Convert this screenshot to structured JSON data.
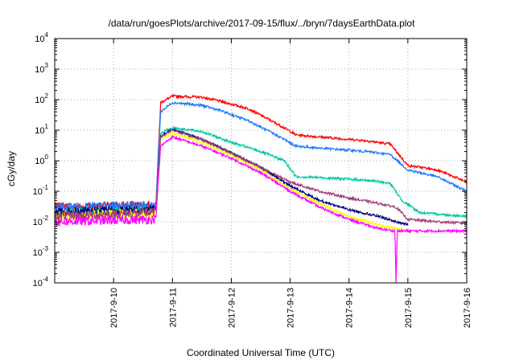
{
  "chart_data": {
    "type": "line",
    "title": "/data/run/goesPlots/archive/2017-09-15/flux/../bryn/7daysEarthData.plot",
    "xlabel": "Coordinated Universal Time (UTC)",
    "ylabel": "cGy/day",
    "x_range": [
      "2017-09-09 00:00",
      "2017-09-16 00:00"
    ],
    "y_scale": "log",
    "ylim": [
      0.0001,
      10000
    ],
    "y_ticks": [
      {
        "mant": "10",
        "exp": "-4"
      },
      {
        "mant": "10",
        "exp": "-3"
      },
      {
        "mant": "10",
        "exp": "-2"
      },
      {
        "mant": "10",
        "exp": "-1"
      },
      {
        "mant": "10",
        "exp": "0"
      },
      {
        "mant": "10",
        "exp": "1"
      },
      {
        "mant": "10",
        "exp": "2"
      },
      {
        "mant": "10",
        "exp": "3"
      },
      {
        "mant": "10",
        "exp": "4"
      }
    ],
    "x_ticks": [
      "2017-9-10",
      "2017-9-11",
      "2017-9-12",
      "2017-9-13",
      "2017-9-14",
      "2017-9-15",
      "2017-9-16"
    ],
    "grid": true,
    "series": [
      {
        "color": "#ff0000",
        "x": [
          9.0,
          10.68,
          10.72,
          10.8,
          11.0,
          11.5,
          11.8,
          12.3,
          12.9,
          13.1,
          13.5,
          14.0,
          14.3,
          14.7,
          15.0,
          15.5,
          16.0
        ],
        "y": [
          0.03,
          0.035,
          0.04,
          80,
          130,
          120,
          90,
          50,
          12,
          7,
          6,
          5,
          4.5,
          3.5,
          0.7,
          0.5,
          0.2
        ]
      },
      {
        "color": "#1e78ff",
        "x": [
          9.0,
          10.68,
          10.72,
          10.8,
          11.0,
          11.5,
          11.8,
          12.3,
          12.9,
          13.1,
          13.5,
          14.0,
          14.3,
          14.7,
          15.0,
          15.5,
          16.0
        ],
        "y": [
          0.03,
          0.035,
          0.04,
          40,
          80,
          65,
          45,
          20,
          5,
          3,
          2.6,
          2.2,
          2,
          1.6,
          0.5,
          0.3,
          0.1
        ]
      },
      {
        "color": "#00c8a0",
        "x": [
          9.0,
          10.68,
          10.72,
          10.8,
          11.0,
          11.5,
          12.0,
          12.5,
          12.9,
          13.1,
          13.5,
          14.0,
          14.4,
          14.7,
          14.9,
          15.2,
          16.0
        ],
        "y": [
          0.02,
          0.025,
          0.03,
          8,
          12,
          9,
          4,
          2,
          1,
          0.3,
          0.28,
          0.25,
          0.22,
          0.18,
          0.05,
          0.02,
          0.015
        ]
      },
      {
        "color": "#000080",
        "x": [
          9.0,
          10.68,
          10.72,
          10.8,
          11.0,
          11.5,
          12.0,
          12.5,
          13.0,
          13.5,
          14.0,
          14.5,
          14.8,
          15.0
        ],
        "y": [
          0.02,
          0.025,
          0.03,
          6,
          11,
          5,
          1.8,
          0.6,
          0.15,
          0.05,
          0.025,
          0.015,
          0.01,
          0.008
        ]
      },
      {
        "color": "#ffff00",
        "x": [
          9.0,
          10.68,
          10.72,
          10.8,
          11.0,
          11.5,
          12.0,
          12.5,
          13.0,
          13.5,
          14.0,
          14.5,
          14.8,
          15.0
        ],
        "y": [
          0.015,
          0.02,
          0.025,
          5,
          8,
          4,
          1.5,
          0.5,
          0.12,
          0.04,
          0.015,
          0.008,
          0.006,
          0.005
        ]
      },
      {
        "color": "#a03c78",
        "x": [
          9.0,
          10.68,
          10.72,
          10.8,
          11.0,
          11.5,
          12.0,
          12.5,
          13.0,
          13.5,
          14.0,
          14.5,
          14.8,
          15.0,
          15.5,
          16.0
        ],
        "y": [
          0.015,
          0.02,
          0.025,
          6,
          10,
          5,
          1.8,
          0.6,
          0.2,
          0.1,
          0.06,
          0.04,
          0.03,
          0.012,
          0.01,
          0.009
        ]
      },
      {
        "color": "#ff00ff",
        "x": [
          9.0,
          10.68,
          10.72,
          10.8,
          11.0,
          11.5,
          12.0,
          12.5,
          13.0,
          13.5,
          14.0,
          14.5,
          14.78,
          14.8,
          14.82,
          15.0,
          15.5,
          16.0
        ],
        "y": [
          0.01,
          0.012,
          0.015,
          3,
          6,
          3,
          1.2,
          0.4,
          0.1,
          0.03,
          0.012,
          0.006,
          0.005,
          0.0001,
          0.005,
          0.005,
          0.005,
          0.005
        ]
      }
    ]
  }
}
